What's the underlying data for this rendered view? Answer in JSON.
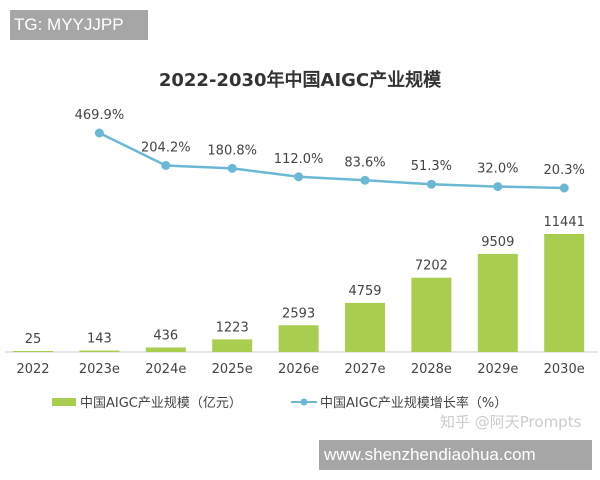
{
  "watermark_top": "TG: MYYJJPP",
  "watermark_bottom": "www.shenzhendiaohua.com",
  "zhihu_mark": "知乎 @阿天Prompts",
  "chart_data": {
    "type": "bar",
    "title": "2022-2030年中国AIGC产业规模",
    "categories": [
      "2022",
      "2023e",
      "2024e",
      "2025e",
      "2026e",
      "2027e",
      "2028e",
      "2029e",
      "2030e"
    ],
    "series": [
      {
        "name": "中国AIGC产业规模（亿元）",
        "type": "bar",
        "color": "#a9cd4f",
        "values": [
          25,
          143,
          436,
          1223,
          2593,
          4759,
          7202,
          9509,
          11441
        ]
      },
      {
        "name": "中国AIGC产业规模增长率（%）",
        "type": "line",
        "color": "#6bb8d4",
        "values": [
          null,
          469.9,
          204.2,
          180.8,
          112.0,
          83.6,
          51.3,
          32.0,
          20.3
        ],
        "labels": [
          "",
          "469.9%",
          "204.2%",
          "180.8%",
          "112.0%",
          "83.6%",
          "51.3%",
          "32.0%",
          "20.3%"
        ]
      }
    ],
    "legend": "bottom",
    "grid": false
  }
}
